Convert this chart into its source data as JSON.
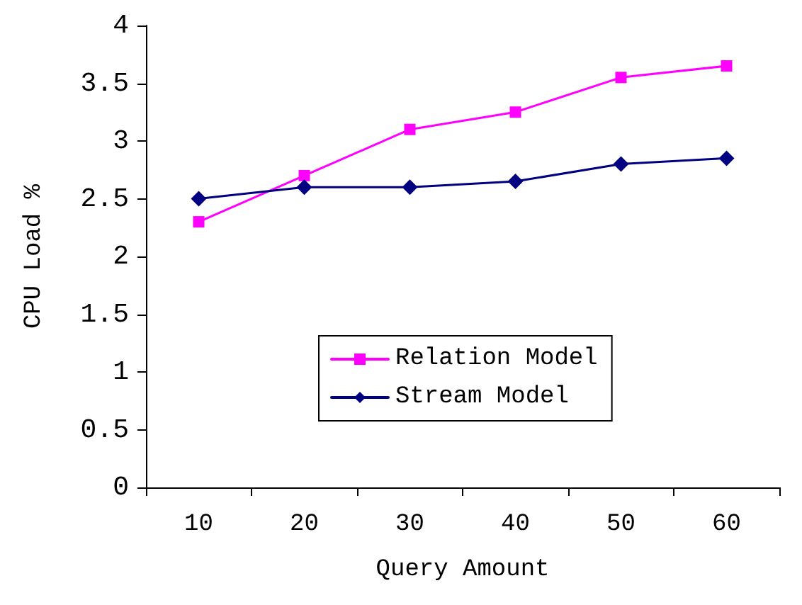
{
  "chart_data": {
    "type": "line",
    "xlabel": "Query Amount",
    "ylabel": "CPU Load %",
    "categories": [
      "10",
      "20",
      "30",
      "40",
      "50",
      "60"
    ],
    "series": [
      {
        "name": "Relation Model",
        "color": "#ff00ff",
        "marker": "square",
        "values": [
          2.3,
          2.7,
          3.1,
          3.25,
          3.55,
          3.65
        ]
      },
      {
        "name": "Stream Model",
        "color": "#000080",
        "marker": "diamond",
        "values": [
          2.5,
          2.6,
          2.6,
          2.65,
          2.8,
          2.85
        ]
      }
    ],
    "ylim": [
      0,
      4
    ],
    "yticks": [
      0,
      0.5,
      1,
      1.5,
      2,
      2.5,
      3,
      3.5,
      4
    ],
    "grid": false,
    "legend": "center",
    "line_style": "solid"
  }
}
